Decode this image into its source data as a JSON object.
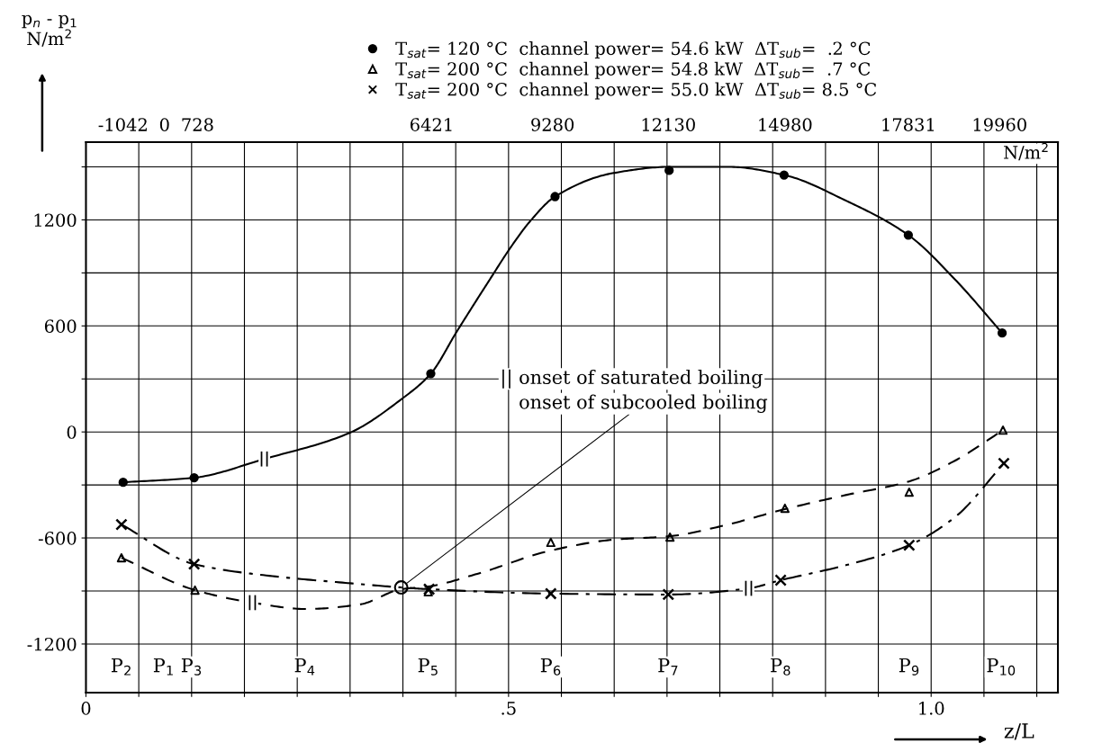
{
  "chart_data": {
    "type": "scatter",
    "xlabel": "z/L",
    "xlim": [
      0,
      1.15
    ],
    "xticks": [
      {
        "value": 0,
        "label": "0"
      },
      {
        "value": 0.0625,
        "label": null
      },
      {
        "value": 0.125,
        "label": null
      },
      {
        "value": 0.1875,
        "label": null
      },
      {
        "value": 0.25,
        "label": null
      },
      {
        "value": 0.3125,
        "label": null
      },
      {
        "value": 0.375,
        "label": null
      },
      {
        "value": 0.4375,
        "label": null
      },
      {
        "value": 0.5,
        "label": ".5"
      },
      {
        "value": 0.5625,
        "label": null
      },
      {
        "value": 0.625,
        "label": null
      },
      {
        "value": 0.6875,
        "label": null
      },
      {
        "value": 0.75,
        "label": null
      },
      {
        "value": 0.8125,
        "label": null
      },
      {
        "value": 0.875,
        "label": null
      },
      {
        "value": 0.9375,
        "label": null
      },
      {
        "value": 1.0,
        "label": "1.0"
      },
      {
        "value": 1.0625,
        "label": null
      },
      {
        "value": 1.125,
        "label": null
      }
    ],
    "ylim": [
      -1475,
      1640
    ],
    "yticks": [
      {
        "value": -1200,
        "label": "-1200"
      },
      {
        "value": -900,
        "label": null
      },
      {
        "value": -600,
        "label": "-600"
      },
      {
        "value": -300,
        "label": null
      },
      0,
      {
        "value": 300,
        "label": null
      },
      600,
      {
        "value": 900,
        "label": null
      },
      1200,
      {
        "value": 1500,
        "label": null
      }
    ],
    "grid": true,
    "legend": "top",
    "series": [
      {
        "name": "T$_{sat}$= 120 °C  channel power= 54.6 kW  ΔT$_{sub}$=  .2 °C",
        "type": "scatter",
        "marker": "circle",
        "color": "#000000",
        "x": [
          0.044,
          0.128,
          0.408,
          0.555,
          0.69,
          0.826,
          0.973,
          1.084
        ],
        "values": [
          -285,
          -259,
          330,
          1332,
          1480,
          1454,
          1114,
          560
        ]
      },
      {
        "type": "line",
        "line_style": "solid",
        "color": "#000000",
        "x": [
          0.044,
          0.128,
          0.211,
          0.312,
          0.374,
          0.408,
          0.439,
          0.478,
          0.503,
          0.526,
          0.555,
          0.623,
          0.69,
          0.761,
          0.826,
          0.9,
          0.973,
          1.028,
          1.084
        ],
        "values": [
          -285,
          -259,
          -153,
          -5,
          188,
          330,
          570,
          864,
          1048,
          1195,
          1332,
          1464,
          1500,
          1500,
          1454,
          1307,
          1114,
          864,
          560
        ]
      },
      {
        "name": "T$_{sat}$= 200 °C  channel power= 54.8 kW  ΔT$_{sub}$=  .7 °C",
        "type": "scatter",
        "marker": "triangle",
        "color": "#000000",
        "x": [
          0.042,
          0.129,
          0.405,
          0.55,
          0.691,
          0.827,
          0.974,
          1.085
        ],
        "values": [
          -712,
          -895,
          -905,
          -625,
          -595,
          -432,
          -341,
          10
        ]
      },
      {
        "type": "line",
        "line_style": "dashed",
        "color": "#000000",
        "x": [
          0.042,
          0.129,
          0.197,
          0.26,
          0.324,
          0.373,
          0.405,
          0.463,
          0.55,
          0.623,
          0.691,
          0.751,
          0.827,
          0.9,
          0.974,
          1.028,
          1.085
        ],
        "values": [
          -712,
          -895,
          -966,
          -1002,
          -976,
          -890,
          -875,
          -803,
          -671,
          -610,
          -590,
          -534,
          -437,
          -356,
          -280,
          -163,
          10
        ]
      },
      {
        "name": "T$_{sat}$= 200 °C  channel power= 55.0 kW  ΔT$_{sub}$= 8.5 °C",
        "type": "scatter",
        "marker": "cross",
        "color": "#000000",
        "x": [
          0.042,
          0.128,
          0.406,
          0.55,
          0.689,
          0.822,
          0.974,
          1.086
        ],
        "values": [
          -524,
          -748,
          -890,
          -915,
          -920,
          -839,
          -641,
          -178
        ]
      },
      {
        "type": "line",
        "line_style": "dashdot",
        "color": "#000000",
        "x": [
          0.042,
          0.128,
          0.217,
          0.307,
          0.373,
          0.406,
          0.55,
          0.689,
          0.784,
          0.822,
          0.9,
          0.974,
          1.028,
          1.086
        ],
        "values": [
          -524,
          -748,
          -814,
          -854,
          -880,
          -890,
          -915,
          -920,
          -885,
          -839,
          -753,
          -641,
          -483,
          -178
        ]
      }
    ],
    "annotations": [
      {
        "text": "||",
        "x": 0.211,
        "y": -153
      },
      {
        "text": "||",
        "x": 0.197,
        "y": -966
      },
      {
        "text": "||",
        "x": 0.784,
        "y": -885
      },
      "|| onset of saturated boiling",
      {
        "text": "onset of subcooled boiling",
        "x": 0.373,
        "y": -880
      },
      "P$_{2}$",
      "P$_{1}$",
      "P$_{3}$",
      "P$_{4}$",
      "P$_{5}$",
      "P$_{6}$",
      "P$_{7}$",
      "P$_{8}$",
      "P$_{9}$",
      "P$_{10}$",
      "-1042",
      "0",
      "728",
      "6421",
      "9280",
      "12130",
      "14980",
      "17831",
      "19960",
      "N/m$^{2}$",
      "p$_{n}$ - p$_{1}$\nN/m$^{2}$"
    ]
  }
}
